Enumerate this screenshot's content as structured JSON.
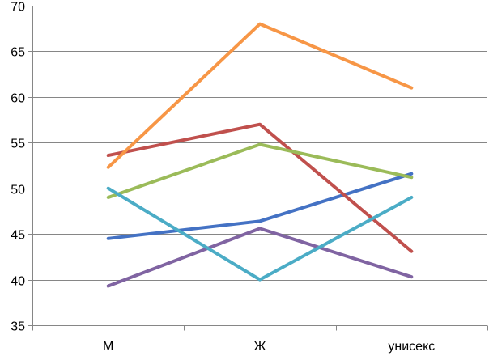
{
  "chart_data": {
    "type": "line",
    "title": "",
    "xlabel": "",
    "ylabel": "",
    "categories": [
      "М",
      "Ж",
      "унисекс"
    ],
    "ylim": [
      35,
      70
    ],
    "yticks": [
      35,
      40,
      45,
      50,
      55,
      60,
      65,
      70
    ],
    "grid": "horizontal",
    "legend": "none",
    "series": [
      {
        "color": "#4472C4",
        "values": [
          44.5,
          46.4,
          51.6
        ]
      },
      {
        "color": "#C0504D",
        "values": [
          53.6,
          57.0,
          43.1
        ]
      },
      {
        "color": "#9BBB59",
        "values": [
          49.0,
          54.8,
          51.2
        ]
      },
      {
        "color": "#8064A2",
        "values": [
          39.3,
          45.6,
          40.3
        ]
      },
      {
        "color": "#4BACC6",
        "values": [
          50.0,
          40.0,
          49.0
        ]
      },
      {
        "color": "#F79646",
        "values": [
          52.3,
          68.0,
          61.0
        ]
      }
    ]
  }
}
